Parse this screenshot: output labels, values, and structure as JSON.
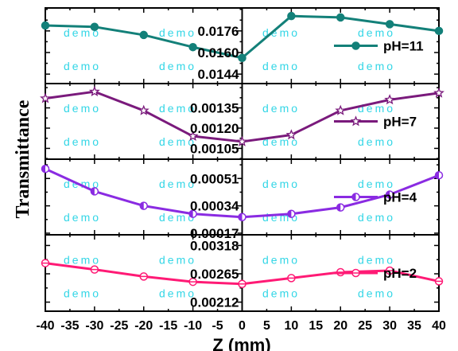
{
  "chart_data": {
    "type": "line",
    "xlabel": "Z (mm)",
    "ylabel": "Transmittance",
    "x_ticks": [
      -40,
      -35,
      -30,
      -25,
      -20,
      -15,
      -10,
      -5,
      0,
      5,
      10,
      15,
      20,
      25,
      30,
      35,
      40
    ],
    "xlim": [
      -40,
      40
    ],
    "watermark": "demo",
    "panels": [
      {
        "legend": "pH=11",
        "color": "#138079",
        "marker": "circle-filled",
        "ylim": [
          0.0137,
          0.0193
        ],
        "y_ticks": [
          "0.0176",
          "0.0160",
          "0.0144"
        ],
        "y_tick_values": [
          0.0176,
          0.016,
          0.0144
        ],
        "x": [
          -40,
          -30,
          -20,
          -10,
          0,
          10,
          20,
          30,
          40
        ],
        "y": [
          0.018,
          0.0179,
          0.0173,
          0.0164,
          0.0156,
          0.0187,
          0.0186,
          0.0181,
          0.0176
        ]
      },
      {
        "legend": "pH=7",
        "color": "#7a1a7c",
        "marker": "star-open",
        "ylim": [
          0.00097,
          0.00153
        ],
        "y_ticks": [
          "0.00135",
          "0.00120",
          "0.00105"
        ],
        "y_tick_values": [
          0.00135,
          0.0012,
          0.00105
        ],
        "x": [
          -40,
          -30,
          -20,
          -10,
          0,
          10,
          20,
          30,
          40
        ],
        "y": [
          0.00142,
          0.00147,
          0.00133,
          0.00114,
          0.0011,
          0.00115,
          0.00133,
          0.00141,
          0.00146
        ]
      },
      {
        "legend": "pH=4",
        "color": "#8a2be2",
        "marker": "circle-half",
        "ylim": [
          0.00016,
          0.00063
        ],
        "y_ticks": [
          "0.00051",
          "0.00034",
          "0.00017"
        ],
        "y_tick_values": [
          0.00051,
          0.00034,
          0.00017
        ],
        "x": [
          -40,
          -30,
          -20,
          -10,
          0,
          10,
          20,
          30,
          40
        ],
        "y": [
          0.00057,
          0.00043,
          0.00034,
          0.00029,
          0.00027,
          0.00029,
          0.00033,
          0.00041,
          0.00053
        ]
      },
      {
        "legend": "pH=2",
        "color": "#ff1a75",
        "marker": "circle-minus",
        "ylim": [
          0.00195,
          0.00338
        ],
        "y_ticks": [
          "0.00318",
          "0.00265",
          "0.00212"
        ],
        "y_tick_values": [
          0.00318,
          0.00265,
          0.00212
        ],
        "x": [
          -40,
          -30,
          -20,
          -10,
          0,
          10,
          20,
          30,
          40
        ],
        "y": [
          0.00285,
          0.00273,
          0.0026,
          0.0025,
          0.00246,
          0.00257,
          0.00268,
          0.00271,
          0.00251
        ]
      }
    ]
  }
}
